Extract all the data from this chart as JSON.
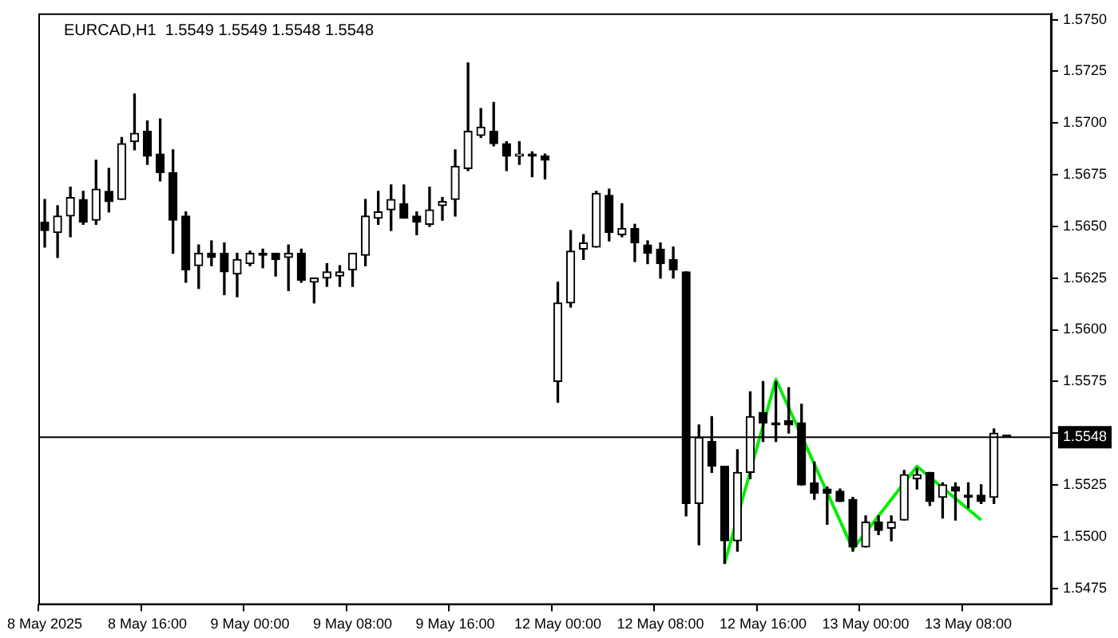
{
  "chart_data": {
    "type": "candlestick",
    "title": "EURCAD,H1  1.5549 1.5549 1.5548 1.5548",
    "categories": [
      "8 May 2025",
      null,
      null,
      null,
      null,
      null,
      null,
      null,
      "8 May 16:00",
      null,
      null,
      null,
      null,
      null,
      null,
      null,
      "9 May 00:00",
      null,
      null,
      null,
      null,
      null,
      null,
      null,
      "9 May 08:00",
      null,
      null,
      null,
      null,
      null,
      null,
      null,
      "9 May 16:00",
      null,
      null,
      null,
      null,
      null,
      null,
      null,
      "12 May 00:00",
      null,
      null,
      null,
      null,
      null,
      null,
      null,
      "12 May 08:00",
      null,
      null,
      null,
      null,
      null,
      null,
      null,
      "12 May 16:00",
      null,
      null,
      null,
      null,
      null,
      null,
      null,
      "13 May 00:00",
      null,
      null,
      null,
      null,
      null,
      null,
      null,
      "13 May 08:00",
      null,
      null,
      null,
      null,
      null,
      null
    ],
    "ohlc": [
      [
        1.5652,
        1.5663,
        1.564,
        1.5648
      ],
      [
        1.5647,
        1.566,
        1.5635,
        1.5655
      ],
      [
        1.5655,
        1.5669,
        1.5645,
        1.5664
      ],
      [
        1.5663,
        1.5667,
        1.5651,
        1.5652
      ],
      [
        1.5653,
        1.5682,
        1.5651,
        1.5668
      ],
      [
        1.5667,
        1.5678,
        1.5657,
        1.5662
      ],
      [
        1.5663,
        1.5693,
        1.5663,
        1.569
      ],
      [
        1.5691,
        1.5714,
        1.5687,
        1.5695
      ],
      [
        1.5696,
        1.5701,
        1.568,
        1.5684
      ],
      [
        1.5685,
        1.5702,
        1.5672,
        1.5676
      ],
      [
        1.5676,
        1.5687,
        1.5637,
        1.5653
      ],
      [
        1.5655,
        1.5657,
        1.5623,
        1.5629
      ],
      [
        1.5631,
        1.5641,
        1.562,
        1.5637
      ],
      [
        1.5637,
        1.5643,
        1.5631,
        1.5635
      ],
      [
        1.5637,
        1.5642,
        1.5617,
        1.5628
      ],
      [
        1.5627,
        1.5637,
        1.5616,
        1.5634
      ],
      [
        1.5632,
        1.5638,
        1.5631,
        1.5637
      ],
      [
        1.5637,
        1.5639,
        1.563,
        1.5636
      ],
      [
        1.5637,
        1.5637,
        1.5626,
        1.5634
      ],
      [
        1.5635,
        1.5641,
        1.5619,
        1.5637
      ],
      [
        1.5637,
        1.5639,
        1.5623,
        1.5624
      ],
      [
        1.5623,
        1.5625,
        1.5613,
        1.5625
      ],
      [
        1.5625,
        1.5632,
        1.5621,
        1.5628
      ],
      [
        1.5626,
        1.5631,
        1.5621,
        1.5628
      ],
      [
        1.5629,
        1.5637,
        1.5621,
        1.5637
      ],
      [
        1.5636,
        1.5663,
        1.5631,
        1.5655
      ],
      [
        1.5654,
        1.5667,
        1.5651,
        1.5657
      ],
      [
        1.5658,
        1.567,
        1.5648,
        1.5663
      ],
      [
        1.5661,
        1.567,
        1.5654,
        1.5654
      ],
      [
        1.5655,
        1.5657,
        1.5646,
        1.5652
      ],
      [
        1.5651,
        1.5669,
        1.565,
        1.5658
      ],
      [
        1.566,
        1.5664,
        1.5653,
        1.5662
      ],
      [
        1.5663,
        1.5687,
        1.5655,
        1.5679
      ],
      [
        1.5678,
        1.5729,
        1.5677,
        1.5696
      ],
      [
        1.5694,
        1.5707,
        1.5693,
        1.5698
      ],
      [
        1.5696,
        1.571,
        1.5689,
        1.569
      ],
      [
        1.569,
        1.5691,
        1.5677,
        1.5684
      ],
      [
        1.5684,
        1.5691,
        1.568,
        1.5685
      ],
      [
        1.5685,
        1.5686,
        1.5674,
        1.5684
      ],
      [
        1.5684,
        1.5685,
        1.5673,
        1.5682
      ],
      [
        1.5575,
        1.5623,
        1.5565,
        1.5613
      ],
      [
        1.5613,
        1.5648,
        1.5611,
        1.5638
      ],
      [
        1.5639,
        1.5646,
        1.5634,
        1.5642
      ],
      [
        1.564,
        1.5667,
        1.564,
        1.5666
      ],
      [
        1.5665,
        1.5668,
        1.5643,
        1.5647
      ],
      [
        1.5646,
        1.5661,
        1.5645,
        1.5649
      ],
      [
        1.5649,
        1.5651,
        1.5633,
        1.5642
      ],
      [
        1.5641,
        1.5643,
        1.5632,
        1.5637
      ],
      [
        1.5639,
        1.5642,
        1.5625,
        1.5632
      ],
      [
        1.5634,
        1.564,
        1.5625,
        1.5629
      ],
      [
        1.5628,
        1.5628,
        1.551,
        1.5516
      ],
      [
        1.5516,
        1.5554,
        1.5496,
        1.5548
      ],
      [
        1.5546,
        1.5558,
        1.5531,
        1.5534
      ],
      [
        1.5534,
        1.5534,
        1.5487,
        1.5498
      ],
      [
        1.5498,
        1.5542,
        1.5493,
        1.5531
      ],
      [
        1.5531,
        1.557,
        1.5528,
        1.5558
      ],
      [
        1.556,
        1.5575,
        1.5546,
        1.5555
      ],
      [
        1.5555,
        1.5575,
        1.5546,
        1.5554
      ],
      [
        1.5556,
        1.5572,
        1.555,
        1.5554
      ],
      [
        1.5555,
        1.5564,
        1.5525,
        1.5525
      ],
      [
        1.5526,
        1.5536,
        1.5518,
        1.5521
      ],
      [
        1.5523,
        1.5524,
        1.5506,
        1.5521
      ],
      [
        1.5522,
        1.5523,
        1.5517,
        1.5517
      ],
      [
        1.5518,
        1.5519,
        1.5493,
        1.5495
      ],
      [
        1.5495,
        1.551,
        1.5495,
        1.5507
      ],
      [
        1.5507,
        1.551,
        1.5501,
        1.5503
      ],
      [
        1.5504,
        1.551,
        1.5498,
        1.5507
      ],
      [
        1.5508,
        1.5532,
        1.5508,
        1.553
      ],
      [
        1.5528,
        1.5533,
        1.5523,
        1.553
      ],
      [
        1.5531,
        1.5531,
        1.5515,
        1.5517
      ],
      [
        1.5519,
        1.5526,
        1.5509,
        1.5525
      ],
      [
        1.5524,
        1.5526,
        1.5508,
        1.5522
      ],
      [
        1.552,
        1.5526,
        1.5514,
        1.5519
      ],
      [
        1.552,
        1.5525,
        1.5516,
        1.5517
      ],
      [
        1.5519,
        1.5552,
        1.5516,
        1.555
      ],
      [
        1.5549,
        1.5549,
        1.5548,
        1.5548
      ],
      null,
      null,
      null
    ],
    "series": [
      {
        "type": "line",
        "color": "#00ee00",
        "values": [
          null,
          null,
          null,
          null,
          null,
          null,
          null,
          null,
          null,
          null,
          null,
          null,
          null,
          null,
          null,
          null,
          null,
          null,
          null,
          null,
          null,
          null,
          null,
          null,
          null,
          null,
          null,
          null,
          null,
          null,
          null,
          null,
          null,
          null,
          null,
          null,
          null,
          null,
          null,
          null,
          null,
          null,
          null,
          null,
          null,
          null,
          null,
          null,
          null,
          null,
          null,
          null,
          null,
          1.5487,
          null,
          null,
          null,
          1.5576,
          null,
          null,
          null,
          null,
          null,
          1.5494,
          null,
          null,
          null,
          null,
          1.5534,
          null,
          null,
          null,
          null,
          1.5508,
          null,
          null,
          null,
          null,
          null
        ]
      }
    ],
    "ylim": [
      1.5467,
      1.5753
    ],
    "yticks": [
      {
        "value": 1.5475,
        "label": "1.5475"
      },
      {
        "value": 1.55,
        "label": "1.5500"
      },
      {
        "value": 1.5525,
        "label": "1.5525"
      },
      {
        "value": 1.555,
        "label": null
      },
      {
        "value": 1.5575,
        "label": "1.5575"
      },
      {
        "value": 1.56,
        "label": "1.5600"
      },
      {
        "value": 1.5625,
        "label": "1.5625"
      },
      {
        "value": 1.565,
        "label": "1.5650"
      },
      {
        "value": 1.5675,
        "label": "1.5675"
      },
      {
        "value": 1.57,
        "label": "1.5700"
      },
      {
        "value": 1.5725,
        "label": "1.5725"
      },
      {
        "value": 1.575,
        "label": "1.5750"
      }
    ],
    "ref_lines": [
      {
        "axis": "y",
        "value": 1.5548,
        "label": "1.5548",
        "color": "#000000"
      }
    ],
    "grid": false,
    "legend": false
  }
}
